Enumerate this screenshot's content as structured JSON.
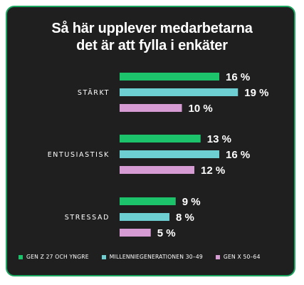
{
  "chart_data": {
    "type": "bar",
    "orientation": "horizontal",
    "title_lines": [
      "Så här upplever medarbetarna",
      "det är att fylla i enkäter"
    ],
    "categories": [
      "STÄRKT",
      "ENTUSIASTISK",
      "STRESSAD"
    ],
    "series": [
      {
        "name": "GEN Z 27 OCH YNGRE",
        "color": "#1cc36b",
        "values": [
          16,
          13,
          9
        ]
      },
      {
        "name": "MILLENNIEGENERATIONEN 30–49",
        "color": "#6ecfd3",
        "values": [
          19,
          16,
          8
        ]
      },
      {
        "name": "GEN X 50–64",
        "color": "#d79bd4",
        "values": [
          10,
          12,
          5
        ]
      }
    ],
    "value_suffix": " %",
    "grid": false,
    "legend_position": "bottom"
  },
  "colors": {
    "background": "#1f1f1f",
    "border": "#1ca761"
  }
}
